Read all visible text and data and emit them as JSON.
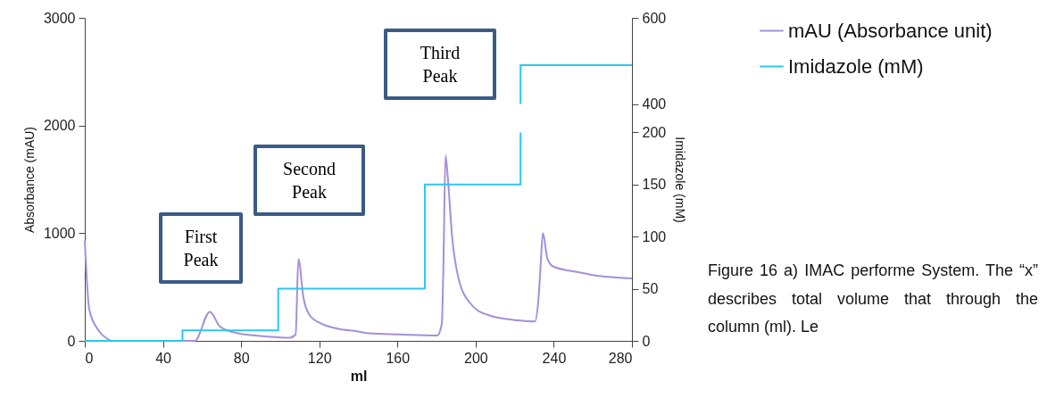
{
  "chart_data": {
    "type": "line",
    "xlabel": "ml",
    "ylabel": "Absorbance (mAU)",
    "y2label": "Imidazole (mM)",
    "xlim": [
      0,
      280
    ],
    "xticks": [
      0,
      40,
      80,
      120,
      160,
      200,
      240,
      280
    ],
    "ylim": [
      0,
      3000
    ],
    "yticks": [
      0,
      1000,
      2000,
      3000
    ],
    "y2lim": [
      0,
      310
    ],
    "y2ticks": [
      0,
      50,
      100,
      150,
      200
    ],
    "y3lim": [
      -150,
      600
    ],
    "y3ticks": [
      400,
      600
    ],
    "legend": "top right",
    "series": [
      {
        "name": "mAU (Absorbance unit)",
        "color": "#a58fd8",
        "x": [
          0,
          2.3,
          6.9,
          10.7,
          14,
          27,
          56.3,
          64,
          69.3,
          78.4,
          93.6,
          105,
          107.9,
          109.3,
          111.9,
          115,
          121,
          130.3,
          139.3,
          145.4,
          160.6,
          180.4,
          182.7,
          183.5,
          184.6,
          185.8,
          188,
          191,
          197.2,
          206.3,
          221.6,
          230.4,
          232.2,
          233.4,
          234.4,
          236.8,
          239.8,
          252,
          264.2,
          280
        ],
        "values": [
          930,
          290,
          100,
          30,
          0,
          0,
          0,
          270,
          130,
          70,
          40,
          30,
          60,
          760,
          400,
          240,
          160,
          110,
          90,
          70,
          60,
          50,
          160,
          680,
          1720,
          1510,
          960,
          600,
          350,
          240,
          190,
          180,
          400,
          740,
          1000,
          760,
          690,
          640,
          600,
          580
        ]
      },
      {
        "name": "Imidazole (mM)",
        "color": "#2cc6f2",
        "type": "step",
        "axis": "y2",
        "x": [
          0,
          50,
          99,
          174,
          223
        ],
        "values": [
          0,
          10,
          50,
          150,
          200
        ]
      },
      {
        "color": "#2cc6f2",
        "type": "step",
        "axis": "y3",
        "x": [
          223,
          223,
          280
        ],
        "values": [
          400,
          490,
          490
        ]
      }
    ],
    "annotations": [
      "First Peak",
      "Second Peak",
      "Third Peak",
      "Figure 16 a) IMAC performe System. The “x” describes total volume that through the column (ml). Le"
    ]
  }
}
